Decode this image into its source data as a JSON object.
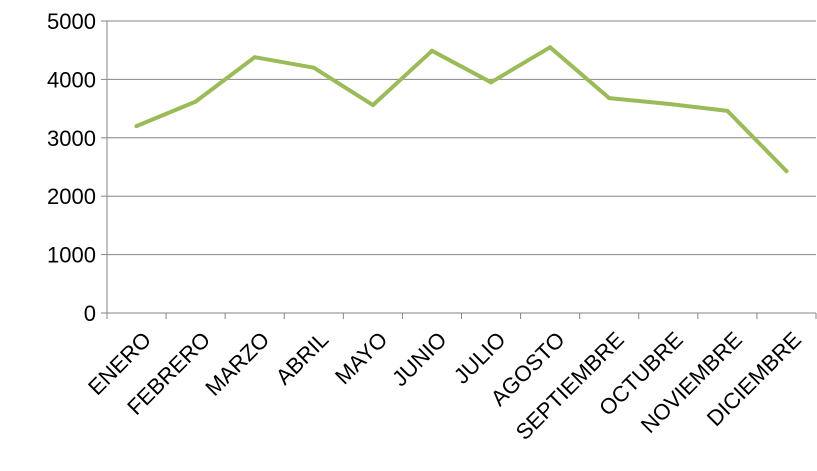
{
  "chart_data": {
    "type": "line",
    "categories": [
      "ENERO",
      "FEBRERO",
      "MARZO",
      "ABRIL",
      "MAYO",
      "JUNIO",
      "JULIO",
      "AGOSTO",
      "SEPTIEMBRE",
      "OCTUBRE",
      "NOVIEMBRE",
      "DICIEMBRE"
    ],
    "series": [
      {
        "values": [
          3200,
          3620,
          4380,
          4200,
          3560,
          4490,
          3950,
          4550,
          3680,
          3580,
          3460,
          2430
        ]
      }
    ],
    "title": "",
    "xlabel": "",
    "ylabel": "",
    "ylim": [
      0,
      5000
    ],
    "yticks": [
      0,
      1000,
      2000,
      3000,
      4000,
      5000
    ],
    "grid": true,
    "colors": {
      "series": "#9bbb59",
      "grid": "#868686",
      "text": "#000000"
    }
  }
}
